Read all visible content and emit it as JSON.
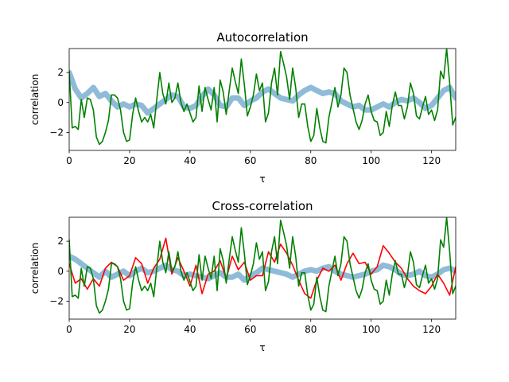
{
  "chart_data": [
    {
      "type": "line",
      "title": "Autocorrelation",
      "xlabel": "τ",
      "ylabel": "correlation",
      "xlim": [
        0,
        128
      ],
      "ylim": [
        -3.2,
        3.6
      ],
      "xticks": [
        0,
        20,
        40,
        60,
        80,
        100,
        120
      ],
      "yticks": [
        -2,
        0,
        2
      ],
      "grid": false,
      "series": [
        {
          "color": "#1f77b4",
          "style": "thick-translucent",
          "x": [
            0,
            2,
            4,
            6,
            8,
            10,
            12,
            14,
            16,
            18,
            20,
            22,
            24,
            26,
            28,
            30,
            32,
            34,
            36,
            38,
            40,
            42,
            44,
            46,
            48,
            50,
            52,
            54,
            56,
            58,
            60,
            62,
            64,
            66,
            68,
            70,
            72,
            74,
            76,
            78,
            80,
            82,
            84,
            86,
            88,
            90,
            92,
            94,
            96,
            98,
            100,
            102,
            104,
            106,
            108,
            110,
            112,
            114,
            116,
            118,
            120,
            122,
            124,
            126,
            128
          ],
          "y": [
            2.0,
            0.9,
            0.3,
            0.6,
            1.0,
            0.4,
            0.6,
            0.1,
            -0.3,
            -0.1,
            -0.3,
            -0.1,
            -0.2,
            -0.7,
            -0.4,
            -0.1,
            0.2,
            0.5,
            0.4,
            -0.3,
            -0.4,
            -0.2,
            0.4,
            0.9,
            0.5,
            -0.2,
            -0.3,
            0.3,
            0.3,
            -0.2,
            0.1,
            0.3,
            0.7,
            0.9,
            0.6,
            0.3,
            0.2,
            0.1,
            0.5,
            0.8,
            1.0,
            0.8,
            0.6,
            0.7,
            0.6,
            0.1,
            -0.1,
            -0.3,
            -0.2,
            -0.5,
            -0.5,
            -0.3,
            -0.1,
            -0.3,
            0.0,
            0.2,
            0.1,
            0.3,
            0.0,
            -0.4,
            -0.2,
            0.3,
            0.8,
            1.0,
            0.3
          ]
        },
        {
          "color": "#008000",
          "style": "line",
          "x": [
            0,
            1,
            2,
            3,
            4,
            5,
            6,
            7,
            8,
            9,
            10,
            11,
            12,
            13,
            14,
            15,
            16,
            17,
            18,
            19,
            20,
            21,
            22,
            23,
            24,
            25,
            26,
            27,
            28,
            29,
            30,
            31,
            32,
            33,
            34,
            35,
            36,
            37,
            38,
            39,
            40,
            41,
            42,
            43,
            44,
            45,
            46,
            47,
            48,
            49,
            50,
            51,
            52,
            53,
            54,
            55,
            56,
            57,
            58,
            59,
            60,
            61,
            62,
            63,
            64,
            65,
            66,
            67,
            68,
            69,
            70,
            71,
            72,
            73,
            74,
            75,
            76,
            77,
            78,
            79,
            80,
            81,
            82,
            83,
            84,
            85,
            86,
            87,
            88,
            89,
            90,
            91,
            92,
            93,
            94,
            95,
            96,
            97,
            98,
            99,
            100,
            101,
            102,
            103,
            104,
            105,
            106,
            107,
            108,
            109,
            110,
            111,
            112,
            113,
            114,
            115,
            116,
            117,
            118,
            119,
            120,
            121,
            122,
            123,
            124,
            125,
            126,
            127,
            128
          ],
          "y": [
            2.1,
            -1.7,
            -1.6,
            -1.8,
            0.2,
            -1.0,
            0.3,
            0.2,
            -0.5,
            -2.3,
            -2.8,
            -2.6,
            -2.0,
            -1.2,
            0.5,
            0.5,
            0.3,
            -0.5,
            -2.0,
            -2.6,
            -2.5,
            -0.8,
            0.3,
            -0.6,
            -1.3,
            -1.0,
            -1.3,
            -0.8,
            -1.7,
            0.2,
            2.0,
            0.6,
            -0.1,
            1.3,
            0.0,
            0.3,
            1.3,
            0.0,
            -0.6,
            -0.1,
            -0.7,
            -1.3,
            -1.0,
            1.1,
            -0.6,
            1.0,
            0.2,
            -0.5,
            1.0,
            -1.3,
            1.5,
            0.7,
            -0.8,
            0.8,
            2.3,
            1.4,
            0.6,
            2.9,
            1.2,
            -0.9,
            -0.3,
            0.5,
            1.9,
            0.8,
            1.3,
            -1.3,
            -0.7,
            1.3,
            2.3,
            0.5,
            3.4,
            2.6,
            1.7,
            0.2,
            2.3,
            1.0,
            -1.0,
            -0.1,
            -0.1,
            -1.6,
            -2.6,
            -2.2,
            -0.4,
            -1.7,
            -2.6,
            -2.7,
            -1.0,
            0.0,
            1.0,
            -0.3,
            0.5,
            2.3,
            2.0,
            0.5,
            -0.4,
            -1.3,
            -1.8,
            -1.2,
            -0.1,
            0.5,
            -0.6,
            -1.2,
            -1.3,
            -2.2,
            -2.0,
            -0.6,
            -1.6,
            -0.2,
            0.7,
            -0.2,
            -0.2,
            -1.1,
            -0.3,
            1.3,
            0.6,
            -0.9,
            -1.1,
            -0.3,
            0.4,
            -0.8,
            -0.5,
            -1.2,
            -0.5,
            2.1,
            1.6,
            3.6,
            1.3,
            -1.5,
            -1.0
          ]
        }
      ]
    },
    {
      "type": "line",
      "title": "Cross-correlation",
      "xlabel": "τ",
      "ylabel": "correlation",
      "xlim": [
        0,
        128
      ],
      "ylim": [
        -3.2,
        3.6
      ],
      "xticks": [
        0,
        20,
        40,
        60,
        80,
        100,
        120
      ],
      "yticks": [
        -2,
        0,
        2
      ],
      "grid": false,
      "series": [
        {
          "color": "#1f77b4",
          "style": "thick-translucent",
          "x": [
            0,
            2,
            4,
            6,
            8,
            10,
            12,
            14,
            16,
            18,
            20,
            22,
            24,
            26,
            28,
            30,
            32,
            34,
            36,
            38,
            40,
            42,
            44,
            46,
            48,
            50,
            52,
            54,
            56,
            58,
            60,
            62,
            64,
            66,
            68,
            70,
            72,
            74,
            76,
            78,
            80,
            82,
            84,
            86,
            88,
            90,
            92,
            94,
            96,
            98,
            100,
            102,
            104,
            106,
            108,
            110,
            112,
            114,
            116,
            118,
            120,
            122,
            124,
            126,
            128
          ],
          "y": [
            1.0,
            0.8,
            0.5,
            0.2,
            -0.1,
            -0.4,
            0.0,
            -0.4,
            -0.2,
            0.0,
            -0.3,
            0.0,
            0.2,
            -0.1,
            0.0,
            0.2,
            0.4,
            0.1,
            0.0,
            -0.3,
            -0.2,
            -0.3,
            -0.4,
            -0.5,
            -0.3,
            -0.1,
            -0.4,
            -0.4,
            -0.2,
            -0.6,
            -0.3,
            -0.1,
            0.2,
            0.1,
            0.0,
            -0.1,
            -0.2,
            -0.4,
            -0.2,
            0.0,
            0.1,
            0.0,
            0.2,
            0.3,
            0.0,
            -0.2,
            -0.3,
            -0.4,
            -0.3,
            -0.2,
            0.0,
            0.1,
            0.4,
            0.3,
            0.1,
            -0.2,
            -0.3,
            -0.2,
            0.0,
            -0.3,
            -0.4,
            -0.2,
            0.1,
            0.2,
            0.0
          ]
        },
        {
          "color": "#ff0000",
          "style": "line",
          "x": [
            0,
            2,
            4,
            6,
            8,
            10,
            12,
            14,
            16,
            18,
            20,
            22,
            24,
            26,
            28,
            30,
            32,
            34,
            36,
            38,
            40,
            42,
            44,
            46,
            48,
            50,
            52,
            54,
            56,
            58,
            60,
            62,
            64,
            66,
            68,
            70,
            72,
            74,
            76,
            78,
            80,
            82,
            84,
            86,
            88,
            90,
            92,
            94,
            96,
            98,
            100,
            102,
            104,
            106,
            108,
            110,
            112,
            114,
            116,
            118,
            120,
            122,
            124,
            126,
            128
          ],
          "y": [
            0.5,
            -0.8,
            -0.5,
            -1.2,
            -0.5,
            -1.0,
            0.2,
            0.6,
            0.3,
            -0.6,
            -0.3,
            0.9,
            0.5,
            -0.8,
            0.2,
            0.8,
            2.2,
            -0.2,
            0.9,
            0.0,
            -1.0,
            0.4,
            -1.5,
            -0.2,
            0.0,
            0.7,
            -0.5,
            1.0,
            0.1,
            0.6,
            -0.6,
            -0.3,
            -0.3,
            1.3,
            0.6,
            1.8,
            1.2,
            0.4,
            -0.6,
            -1.5,
            -1.8,
            -0.6,
            0.2,
            0.0,
            0.4,
            -0.6,
            0.5,
            1.2,
            0.5,
            0.6,
            -0.2,
            0.3,
            1.7,
            1.2,
            0.6,
            0.2,
            -0.5,
            -1.0,
            -1.3,
            -1.5,
            -1.0,
            -0.2,
            -0.8,
            -1.6,
            0.3
          ]
        },
        {
          "color": "#008000",
          "style": "line",
          "x": [
            0,
            1,
            2,
            3,
            4,
            5,
            6,
            7,
            8,
            9,
            10,
            11,
            12,
            13,
            14,
            15,
            16,
            17,
            18,
            19,
            20,
            21,
            22,
            23,
            24,
            25,
            26,
            27,
            28,
            29,
            30,
            31,
            32,
            33,
            34,
            35,
            36,
            37,
            38,
            39,
            40,
            41,
            42,
            43,
            44,
            45,
            46,
            47,
            48,
            49,
            50,
            51,
            52,
            53,
            54,
            55,
            56,
            57,
            58,
            59,
            60,
            61,
            62,
            63,
            64,
            65,
            66,
            67,
            68,
            69,
            70,
            71,
            72,
            73,
            74,
            75,
            76,
            77,
            78,
            79,
            80,
            81,
            82,
            83,
            84,
            85,
            86,
            87,
            88,
            89,
            90,
            91,
            92,
            93,
            94,
            95,
            96,
            97,
            98,
            99,
            100,
            101,
            102,
            103,
            104,
            105,
            106,
            107,
            108,
            109,
            110,
            111,
            112,
            113,
            114,
            115,
            116,
            117,
            118,
            119,
            120,
            121,
            122,
            123,
            124,
            125,
            126,
            127,
            128
          ],
          "y": [
            2.1,
            -1.7,
            -1.6,
            -1.8,
            0.2,
            -1.0,
            0.3,
            0.2,
            -0.5,
            -2.3,
            -2.8,
            -2.6,
            -2.0,
            -1.2,
            0.5,
            0.5,
            0.3,
            -0.5,
            -2.0,
            -2.6,
            -2.5,
            -0.8,
            0.3,
            -0.6,
            -1.3,
            -1.0,
            -1.3,
            -0.8,
            -1.7,
            0.2,
            2.0,
            0.6,
            -0.1,
            1.3,
            0.0,
            0.3,
            1.3,
            0.0,
            -0.6,
            -0.1,
            -0.7,
            -1.3,
            -1.0,
            1.1,
            -0.6,
            1.0,
            0.2,
            -0.5,
            1.0,
            -1.3,
            1.5,
            0.7,
            -0.8,
            0.8,
            2.3,
            1.4,
            0.6,
            2.9,
            1.2,
            -0.9,
            -0.3,
            0.5,
            1.9,
            0.8,
            1.3,
            -1.3,
            -0.7,
            1.3,
            2.3,
            0.5,
            3.4,
            2.6,
            1.7,
            0.2,
            2.3,
            1.0,
            -1.0,
            -0.1,
            -0.1,
            -1.6,
            -2.6,
            -2.2,
            -0.4,
            -1.7,
            -2.6,
            -2.7,
            -1.0,
            0.0,
            1.0,
            -0.3,
            0.5,
            2.3,
            2.0,
            0.5,
            -0.4,
            -1.3,
            -1.8,
            -1.2,
            -0.1,
            0.5,
            -0.6,
            -1.2,
            -1.3,
            -2.2,
            -2.0,
            -0.6,
            -1.6,
            -0.2,
            0.7,
            -0.2,
            -0.2,
            -1.1,
            -0.3,
            1.3,
            0.6,
            -0.9,
            -1.1,
            -0.3,
            0.4,
            -0.8,
            -0.5,
            -1.2,
            -0.5,
            2.1,
            1.6,
            3.6,
            1.3,
            -1.5,
            -1.0
          ]
        }
      ]
    }
  ]
}
